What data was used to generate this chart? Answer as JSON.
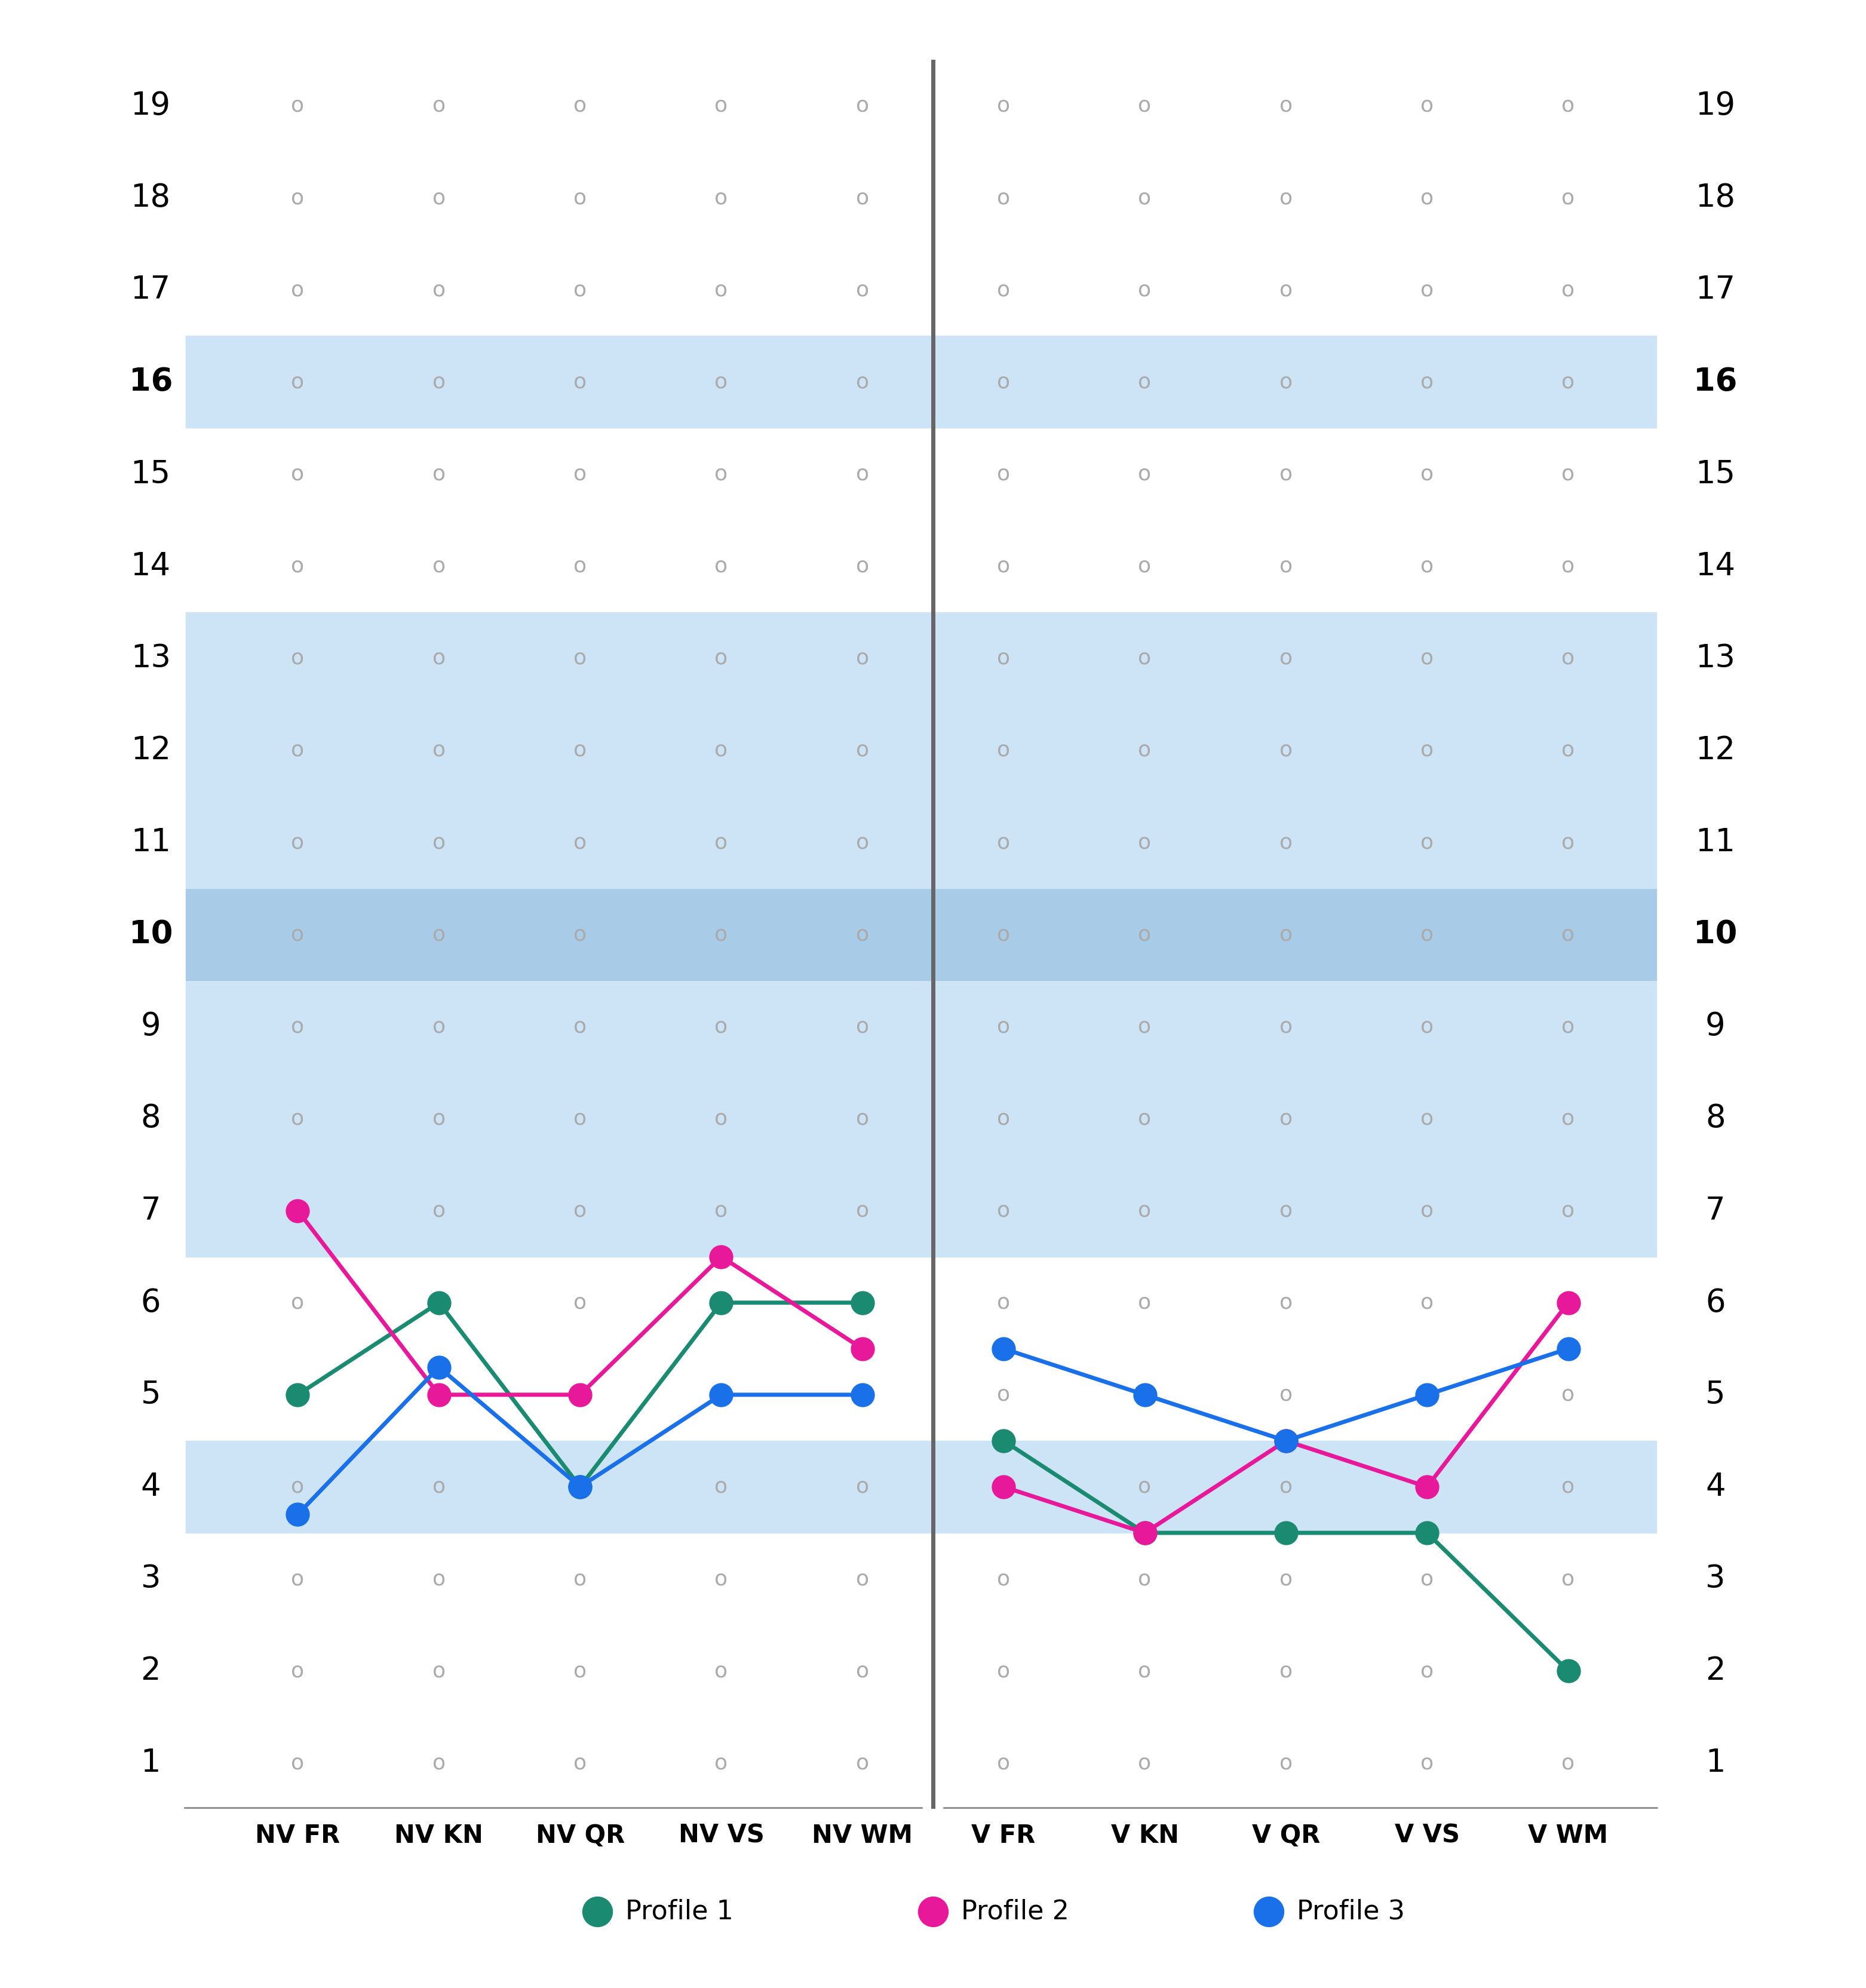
{
  "y_min": 1,
  "y_max": 19,
  "left_cols": [
    "NV FR",
    "NV KN",
    "NV QR",
    "NV VS",
    "NV WM"
  ],
  "right_cols": [
    "V FR",
    "V KN",
    "V QR",
    "V VS",
    "V WM"
  ],
  "profile1_color": "#1a8a70",
  "profile2_color": "#e8189a",
  "profile3_color": "#1a70e8",
  "profile1_left": [
    5,
    6,
    4,
    6,
    6
  ],
  "profile2_left": [
    7,
    5,
    5,
    6.5,
    5.5
  ],
  "profile3_left": [
    3.7,
    5.3,
    4.0,
    5.0,
    5.0
  ],
  "profile1_right": [
    4.5,
    3.5,
    3.5,
    3.5,
    2
  ],
  "profile2_right": [
    4.0,
    3.5,
    4.5,
    4.0,
    6.0
  ],
  "profile3_right": [
    5.5,
    5.0,
    4.5,
    5.0,
    5.5
  ],
  "band_color_light": "#cce4f5",
  "band_color_medium": "#a8cce8",
  "shaded_rows_light": [
    4,
    7,
    8,
    9,
    11,
    12,
    13,
    16
  ],
  "shaded_rows_medium": [
    10
  ],
  "bold_rows": [
    10,
    16
  ],
  "background_color": "#ffffff",
  "grid_dot_color": "#aaaaaa",
  "legend_items": [
    {
      "label": "Profile 1",
      "color": "#1a8a70"
    },
    {
      "label": "Profile 2",
      "color": "#e8189a"
    },
    {
      "label": "Profile 3",
      "color": "#1a70e8"
    }
  ]
}
